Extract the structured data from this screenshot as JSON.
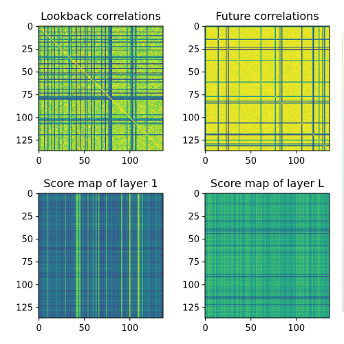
{
  "chart_data": [
    {
      "type": "heatmap",
      "title": "Lookback correlations",
      "colormap": "viridis",
      "matrix_size": 137,
      "value_range": [
        0,
        1
      ],
      "diagonal_value": 1,
      "pattern": "mostly high (yellow) with scattered darker (blue/green) row and column bands",
      "x_ticks": [
        "0",
        "50",
        "100"
      ],
      "y_ticks": [
        "0",
        "25",
        "50",
        "75",
        "100",
        "125"
      ],
      "xlim": [
        0,
        136
      ],
      "ylim": [
        136,
        0
      ]
    },
    {
      "type": "heatmap",
      "title": "Future correlations",
      "colormap": "viridis",
      "matrix_size": 137,
      "value_range": [
        0,
        1
      ],
      "diagonal_value": 1,
      "pattern": "predominantly yellow with thin dark row and column lines",
      "x_ticks": [
        "0",
        "50",
        "100"
      ],
      "y_ticks": [
        "0",
        "25",
        "50",
        "75",
        "100",
        "125"
      ],
      "xlim": [
        0,
        136
      ],
      "ylim": [
        136,
        0
      ]
    },
    {
      "type": "heatmap",
      "title": "Score map of layer 1",
      "colormap": "viridis",
      "matrix_size": 137,
      "value_range": [
        0,
        1
      ],
      "pattern": "mostly dark blue/teal with vertical green-yellow column stripes",
      "x_ticks": [
        "0",
        "50",
        "100"
      ],
      "y_ticks": [
        "0",
        "25",
        "50",
        "75",
        "100",
        "125"
      ],
      "xlim": [
        0,
        136
      ],
      "ylim": [
        136,
        0
      ]
    },
    {
      "type": "heatmap",
      "title": "Score map of layer L",
      "colormap": "viridis",
      "matrix_size": 137,
      "value_range": [
        0,
        1
      ],
      "pattern": "medium green with horizontal darker row bands and finer vertical texture",
      "x_ticks": [
        "0",
        "50",
        "100"
      ],
      "y_ticks": [
        "0",
        "25",
        "50",
        "75",
        "100",
        "125"
      ],
      "xlim": [
        0,
        136
      ],
      "ylim": [
        136,
        0
      ]
    }
  ]
}
